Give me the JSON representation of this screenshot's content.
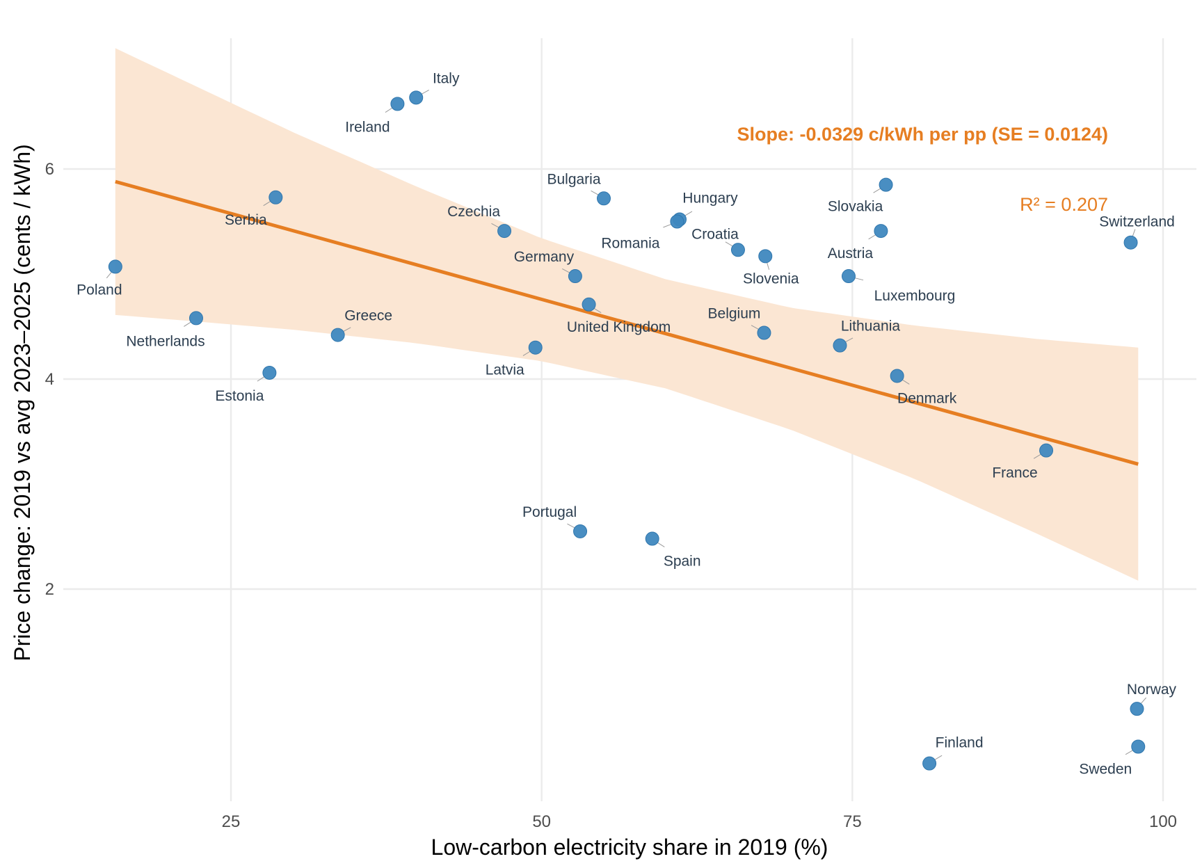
{
  "colors": {
    "points": "#3f88bf",
    "point_stroke": "#2f76ad",
    "fit_line": "#e67e22",
    "ci_band": "#fbe6d3",
    "labels": "#2c3e50",
    "annotation": "#e67e22"
  },
  "chart_data": {
    "type": "scatter",
    "title": "",
    "xlabel": "Low-carbon electricity share in 2019 (%)",
    "ylabel": "Price change: 2019 vs avg 2023–2025 (cents / kWh)",
    "xlim": [
      6.5,
      102.5
    ],
    "ylim": [
      0.2,
      7.25
    ],
    "x_ticks": [
      25,
      50,
      75,
      100
    ],
    "x_tick_labels": [
      "25",
      "50",
      "75",
      "100"
    ],
    "y_ticks": [
      2,
      4,
      6
    ],
    "y_tick_labels": [
      "2",
      "4",
      "6"
    ],
    "grid": true,
    "legend": "none",
    "points": [
      {
        "label": "Poland",
        "x": 15.7,
        "y": 5.07
      },
      {
        "label": "Netherlands",
        "x": 22.2,
        "y": 4.58
      },
      {
        "label": "Serbia",
        "x": 28.6,
        "y": 5.73
      },
      {
        "label": "Estonia",
        "x": 28.1,
        "y": 4.06
      },
      {
        "label": "Greece",
        "x": 33.6,
        "y": 4.42
      },
      {
        "label": "Ireland",
        "x": 38.4,
        "y": 6.62
      },
      {
        "label": "Italy",
        "x": 39.9,
        "y": 6.68
      },
      {
        "label": "Czechia",
        "x": 47.0,
        "y": 5.41
      },
      {
        "label": "Latvia",
        "x": 49.5,
        "y": 4.3
      },
      {
        "label": "Germany",
        "x": 52.7,
        "y": 4.98
      },
      {
        "label": "Portugal",
        "x": 53.1,
        "y": 2.55
      },
      {
        "label": "United Kingdom",
        "x": 53.8,
        "y": 4.71
      },
      {
        "label": "Bulgaria",
        "x": 55.0,
        "y": 5.72
      },
      {
        "label": "Spain",
        "x": 58.9,
        "y": 2.48
      },
      {
        "label": "Hungary",
        "x": 61.1,
        "y": 5.52
      },
      {
        "label": "Romania",
        "x": 60.9,
        "y": 5.5
      },
      {
        "label": "Croatia",
        "x": 65.8,
        "y": 5.23
      },
      {
        "label": "Belgium",
        "x": 67.9,
        "y": 4.44
      },
      {
        "label": "Slovenia",
        "x": 68.0,
        "y": 5.17
      },
      {
        "label": "Lithuania",
        "x": 74.0,
        "y": 4.32
      },
      {
        "label": "Luxembourg",
        "x": 74.7,
        "y": 4.98
      },
      {
        "label": "Austria",
        "x": 77.3,
        "y": 5.41
      },
      {
        "label": "Slovakia",
        "x": 77.7,
        "y": 5.85
      },
      {
        "label": "Denmark",
        "x": 78.6,
        "y": 4.03
      },
      {
        "label": "Finland",
        "x": 81.2,
        "y": 0.34
      },
      {
        "label": "France",
        "x": 90.6,
        "y": 3.32
      },
      {
        "label": "Switzerland",
        "x": 97.4,
        "y": 5.3
      },
      {
        "label": "Norway",
        "x": 97.9,
        "y": 0.86
      },
      {
        "label": "Sweden",
        "x": 98.0,
        "y": 0.5
      }
    ],
    "fit": {
      "method": "linear regression",
      "x_range": [
        15.7,
        98.0
      ],
      "y_at_start": 5.88,
      "y_at_end": 3.19,
      "ci_band": [
        {
          "x": 15.7,
          "lower": 4.61,
          "upper": 7.15
        },
        {
          "x": 20,
          "lower": 4.57,
          "upper": 6.91
        },
        {
          "x": 30,
          "lower": 4.47,
          "upper": 6.35
        },
        {
          "x": 40,
          "lower": 4.34,
          "upper": 5.83
        },
        {
          "x": 50,
          "lower": 4.17,
          "upper": 5.34
        },
        {
          "x": 60,
          "lower": 3.91,
          "upper": 4.95
        },
        {
          "x": 70,
          "lower": 3.52,
          "upper": 4.68
        },
        {
          "x": 80,
          "lower": 3.05,
          "upper": 4.51
        },
        {
          "x": 90,
          "lower": 2.52,
          "upper": 4.38
        },
        {
          "x": 98.0,
          "lower": 2.08,
          "upper": 4.3
        }
      ]
    },
    "annotations": {
      "slope": "Slope: -0.0329 c/kWh per pp  (SE = 0.0124)",
      "r_squared": "R² = 0.207"
    }
  }
}
